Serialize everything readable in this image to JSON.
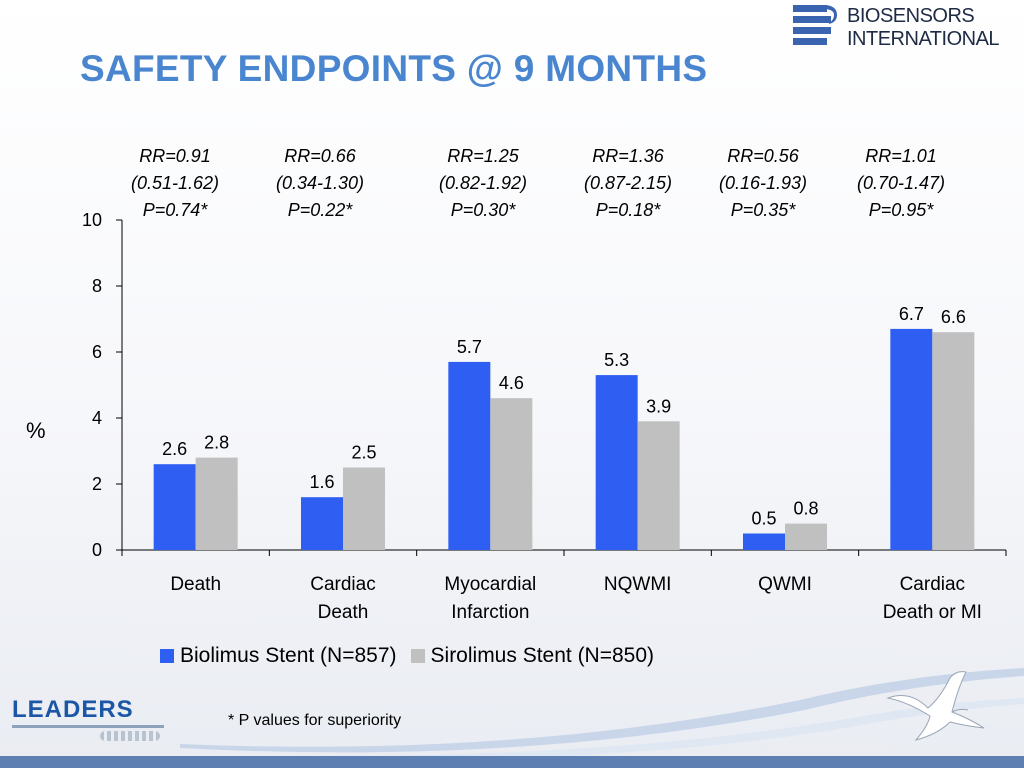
{
  "header": {
    "title": "SAFETY ENDPOINTS @ 9 MONTHS",
    "logo_line1": "BIOSENSORS",
    "logo_line2": "INTERNATIONAL"
  },
  "annotations": [
    {
      "rr": "RR=0.91",
      "ci": "(0.51-1.62)",
      "p": "P=0.74*"
    },
    {
      "rr": "RR=0.66",
      "ci": "(0.34-1.30)",
      "p": "P=0.22*"
    },
    {
      "rr": "RR=1.25",
      "ci": "(0.82-1.92)",
      "p": "P=0.30*"
    },
    {
      "rr": "RR=1.36",
      "ci": "(0.87-2.15)",
      "p": "P=0.18*"
    },
    {
      "rr": "RR=0.56",
      "ci": "(0.16-1.93)",
      "p": "P=0.35*"
    },
    {
      "rr": "RR=1.01",
      "ci": "(0.70-1.47)",
      "p": "P=0.95*"
    }
  ],
  "chart_data": {
    "type": "bar",
    "categories": [
      [
        "Death"
      ],
      [
        "Cardiac",
        "Death"
      ],
      [
        "Myocardial",
        "Infarction"
      ],
      [
        "NQWMI"
      ],
      [
        "QWMI"
      ],
      [
        "Cardiac",
        "Death or MI"
      ]
    ],
    "series": [
      {
        "name": "Biolimus Stent (N=857)",
        "values": [
          2.6,
          1.6,
          5.7,
          5.3,
          0.5,
          6.7
        ],
        "color": "#2f5ef2"
      },
      {
        "name": "Sirolimus Stent (N=850)",
        "values": [
          2.8,
          2.5,
          4.6,
          3.9,
          0.8,
          6.6
        ],
        "color": "#c0c0c0"
      }
    ],
    "ylabel": "%",
    "ylim": [
      0,
      10
    ],
    "yticks": [
      0,
      2,
      4,
      6,
      8,
      10
    ],
    "grid": false,
    "legend": "bottom"
  },
  "footer": {
    "footnote": "* P values for superiority",
    "leaders_logo": "LEADERS"
  }
}
